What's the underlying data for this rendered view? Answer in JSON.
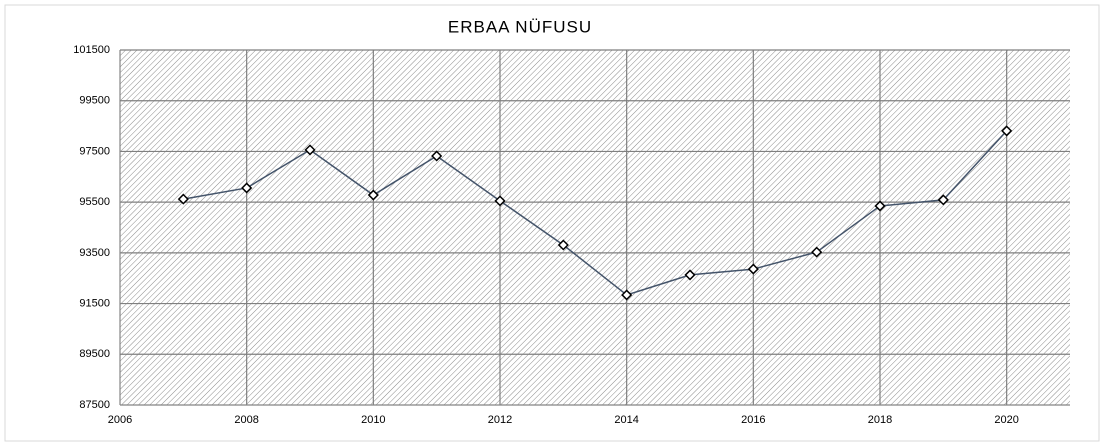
{
  "chart_data": {
    "type": "line",
    "title": "ERBAA NÜFUSU",
    "x": [
      2007,
      2008,
      2009,
      2010,
      2011,
      2012,
      2013,
      2014,
      2015,
      2016,
      2017,
      2018,
      2019,
      2020
    ],
    "series": [
      {
        "name": "ERBAA NÜFUSU",
        "color": "#44546a",
        "values": [
          95620,
          96060,
          97560,
          95780,
          97320,
          95550,
          93810,
          91840,
          92630,
          92860,
          93530,
          95350,
          95590,
          98310
        ]
      }
    ],
    "xlim": [
      2006,
      2021
    ],
    "xticks": [
      2006,
      2008,
      2010,
      2012,
      2014,
      2016,
      2018,
      2020
    ],
    "ylim": [
      87500,
      101500
    ],
    "yticks": [
      87500,
      89500,
      91500,
      93500,
      95500,
      97500,
      99500,
      101500
    ],
    "grid": true
  }
}
